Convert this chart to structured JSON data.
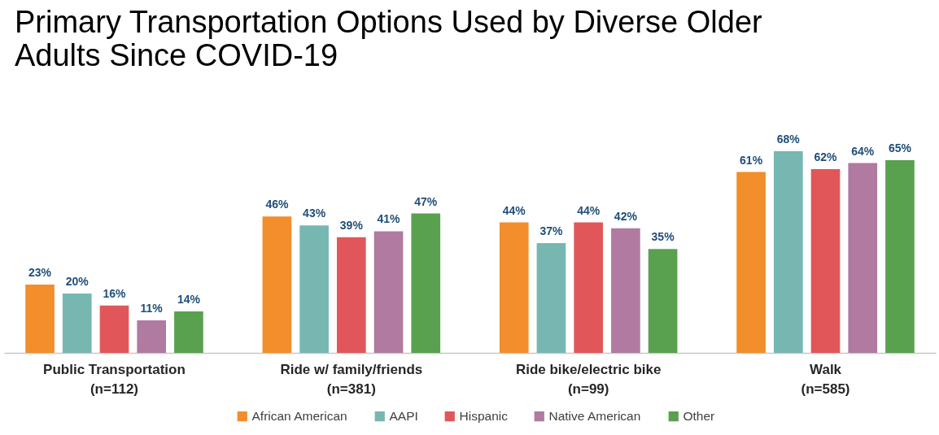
{
  "chart_data": {
    "type": "bar",
    "title": "Primary Transportation Options Used by Diverse Older\nAdults Since COVID-19",
    "categories": [
      "Public Transportation\n(n=112)",
      "Ride w/ family/friends\n(n=381)",
      "Ride bike/electric bike\n(n=99)",
      "Walk\n(n=585)"
    ],
    "series": [
      {
        "name": "African American",
        "color": "#f28e2b",
        "values": [
          23,
          46,
          44,
          61
        ],
        "value_labels": [
          "23%",
          "46%",
          "44%",
          "61%"
        ]
      },
      {
        "name": "AAPI",
        "color": "#76b7b2",
        "values": [
          20,
          43,
          37,
          68
        ],
        "value_labels": [
          "20%",
          "43%",
          "37%",
          "68%"
        ]
      },
      {
        "name": "Hispanic",
        "color": "#e15759",
        "values": [
          16,
          39,
          44,
          62
        ],
        "value_labels": [
          "16%",
          "39%",
          "44%",
          "62%"
        ]
      },
      {
        "name": "Native American",
        "color": "#b07aa1",
        "values": [
          11,
          41,
          42,
          64
        ],
        "value_labels": [
          "11%",
          "41%",
          "42%",
          "64%"
        ]
      },
      {
        "name": "Other",
        "color": "#59a14f",
        "values": [
          14,
          47,
          35,
          65
        ],
        "value_labels": [
          "14%",
          "47%",
          "35%",
          "65%"
        ]
      }
    ],
    "legend": "bottom"
  }
}
